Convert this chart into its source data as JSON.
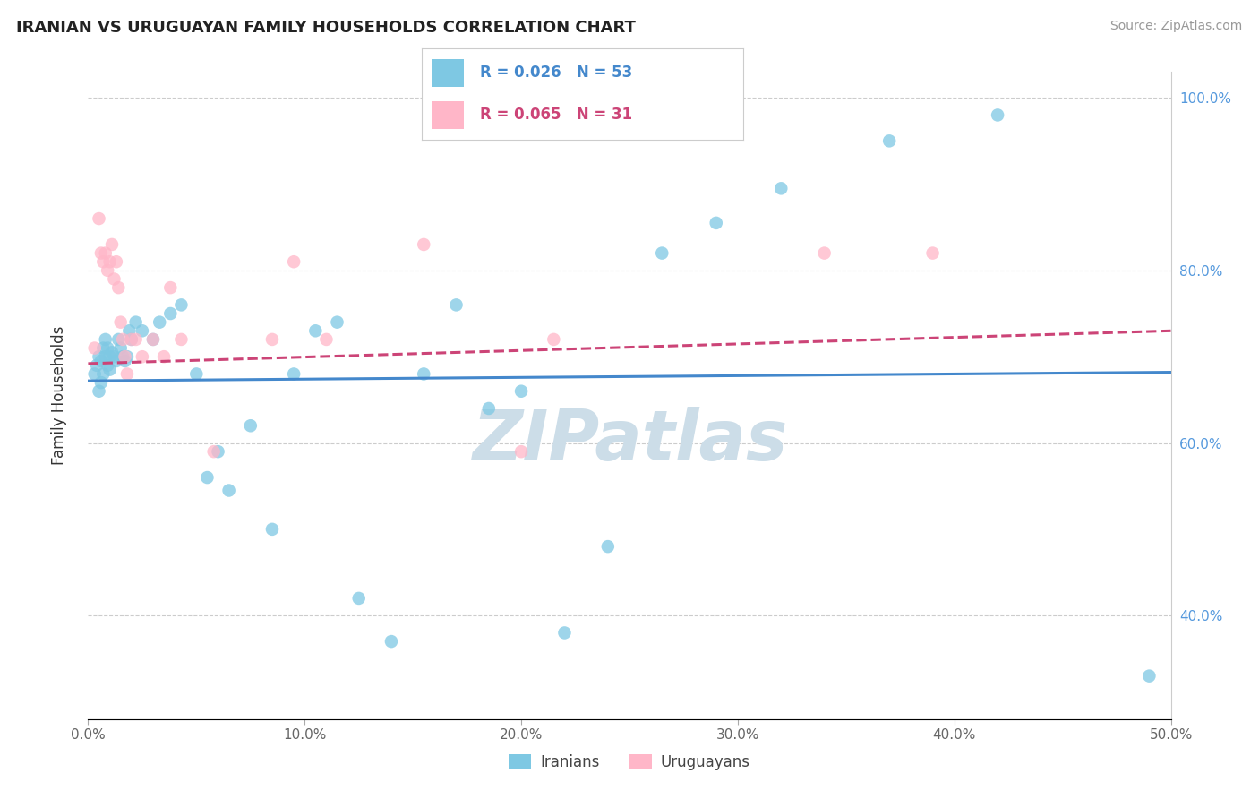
{
  "title": "IRANIAN VS URUGUAYAN FAMILY HOUSEHOLDS CORRELATION CHART",
  "source_text": "Source: ZipAtlas.com",
  "ylabel": "Family Households",
  "xlim": [
    0.0,
    0.5
  ],
  "ylim": [
    0.28,
    1.03
  ],
  "xticks": [
    0.0,
    0.1,
    0.2,
    0.3,
    0.4,
    0.5
  ],
  "xtick_labels": [
    "0.0%",
    "10.0%",
    "20.0%",
    "30.0%",
    "40.0%",
    "50.0%"
  ],
  "yticks_left": [],
  "yticks_right": [
    0.4,
    0.6,
    0.8,
    1.0
  ],
  "ytick_labels_right": [
    "40.0%",
    "60.0%",
    "80.0%",
    "100.0%"
  ],
  "iranians_R": 0.026,
  "iranians_N": 53,
  "uruguayans_R": 0.065,
  "uruguayans_N": 31,
  "blue_color": "#7ec8e3",
  "pink_color": "#ffb6c8",
  "blue_line_color": "#4488cc",
  "pink_line_color": "#cc4477",
  "watermark": "ZIPatlas",
  "watermark_color": "#ccdde8",
  "legend_label_blue": "Iranians",
  "legend_label_pink": "Uruguayans",
  "iranians_x": [
    0.003,
    0.004,
    0.005,
    0.005,
    0.006,
    0.006,
    0.007,
    0.007,
    0.008,
    0.008,
    0.009,
    0.009,
    0.01,
    0.01,
    0.011,
    0.012,
    0.013,
    0.014,
    0.015,
    0.016,
    0.017,
    0.018,
    0.019,
    0.02,
    0.022,
    0.025,
    0.03,
    0.033,
    0.038,
    0.043,
    0.05,
    0.055,
    0.06,
    0.065,
    0.075,
    0.085,
    0.095,
    0.105,
    0.115,
    0.125,
    0.14,
    0.155,
    0.17,
    0.185,
    0.2,
    0.22,
    0.24,
    0.265,
    0.29,
    0.32,
    0.37,
    0.42,
    0.49
  ],
  "iranians_y": [
    0.68,
    0.69,
    0.7,
    0.66,
    0.695,
    0.67,
    0.71,
    0.68,
    0.72,
    0.7,
    0.69,
    0.71,
    0.7,
    0.685,
    0.705,
    0.7,
    0.695,
    0.72,
    0.71,
    0.7,
    0.695,
    0.7,
    0.73,
    0.72,
    0.74,
    0.73,
    0.72,
    0.74,
    0.75,
    0.76,
    0.68,
    0.56,
    0.59,
    0.545,
    0.62,
    0.5,
    0.68,
    0.73,
    0.74,
    0.42,
    0.37,
    0.68,
    0.76,
    0.64,
    0.66,
    0.38,
    0.48,
    0.82,
    0.855,
    0.895,
    0.95,
    0.98,
    0.33
  ],
  "uruguayans_x": [
    0.003,
    0.005,
    0.006,
    0.007,
    0.008,
    0.009,
    0.01,
    0.011,
    0.012,
    0.013,
    0.014,
    0.015,
    0.016,
    0.017,
    0.018,
    0.02,
    0.022,
    0.025,
    0.03,
    0.035,
    0.038,
    0.043,
    0.058,
    0.085,
    0.095,
    0.11,
    0.155,
    0.2,
    0.215,
    0.34,
    0.39
  ],
  "uruguayans_y": [
    0.71,
    0.86,
    0.82,
    0.81,
    0.82,
    0.8,
    0.81,
    0.83,
    0.79,
    0.81,
    0.78,
    0.74,
    0.72,
    0.7,
    0.68,
    0.72,
    0.72,
    0.7,
    0.72,
    0.7,
    0.78,
    0.72,
    0.59,
    0.72,
    0.81,
    0.72,
    0.83,
    0.59,
    0.72,
    0.82,
    0.82
  ],
  "blue_trend_y0": 0.672,
  "blue_trend_y1": 0.682,
  "pink_trend_y0": 0.692,
  "pink_trend_y1": 0.73
}
